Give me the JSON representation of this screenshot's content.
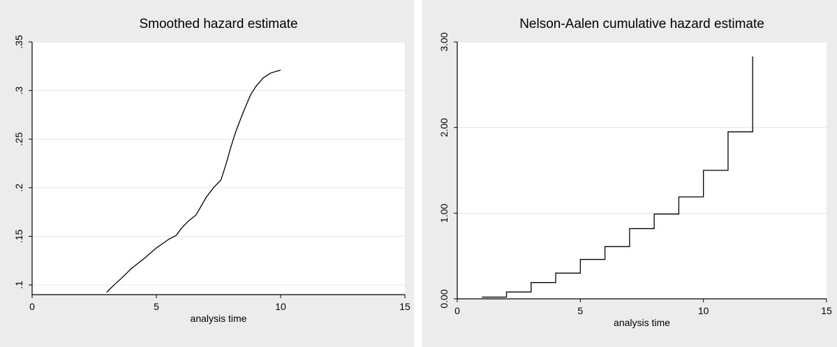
{
  "chart_data": [
    {
      "type": "line",
      "title": "Smoothed hazard estimate",
      "xlabel": "analysis time",
      "ylabel": "",
      "xlim": [
        0,
        15
      ],
      "ylim": [
        0.09,
        0.35
      ],
      "x_ticks": [
        0,
        5,
        10,
        15
      ],
      "x_tick_labels": [
        "0",
        "5",
        "10",
        "15"
      ],
      "y_ticks": [
        0.1,
        0.15,
        0.2,
        0.25,
        0.3,
        0.35
      ],
      "y_tick_labels": [
        ".1",
        ".15",
        ".2",
        ".25",
        ".3",
        ".35"
      ],
      "grid": true,
      "series": [
        {
          "x": [
            3.0,
            3.3,
            3.6,
            4.0,
            4.5,
            5.0,
            5.5,
            5.8,
            6.0,
            6.3,
            6.6,
            7.0,
            7.3,
            7.6,
            7.8,
            8.0,
            8.2,
            8.5,
            8.8,
            9.0,
            9.3,
            9.6,
            10.0
          ],
          "y": [
            0.0925,
            0.1,
            0.107,
            0.117,
            0.127,
            0.138,
            0.147,
            0.151,
            0.158,
            0.166,
            0.172,
            0.19,
            0.2,
            0.208,
            0.224,
            0.242,
            0.258,
            0.278,
            0.296,
            0.304,
            0.313,
            0.318,
            0.321
          ]
        }
      ]
    },
    {
      "type": "line",
      "title": "Nelson-Aalen cumulative hazard estimate",
      "xlabel": "analysis time",
      "ylabel": "",
      "xlim": [
        0,
        15
      ],
      "ylim": [
        0,
        3
      ],
      "x_ticks": [
        0,
        5,
        10,
        15
      ],
      "x_tick_labels": [
        "0",
        "5",
        "10",
        "15"
      ],
      "y_ticks": [
        0,
        1,
        2,
        3
      ],
      "y_tick_labels": [
        "0.00",
        "1.00",
        "2.00",
        "3.00"
      ],
      "grid": true,
      "step": true,
      "series": [
        {
          "x": [
            1,
            2,
            3,
            4,
            5,
            6,
            7,
            8,
            9,
            10,
            11,
            12
          ],
          "y": [
            0.02,
            0.08,
            0.19,
            0.3,
            0.46,
            0.61,
            0.82,
            0.99,
            1.19,
            1.5,
            1.95,
            2.83
          ]
        }
      ]
    }
  ]
}
